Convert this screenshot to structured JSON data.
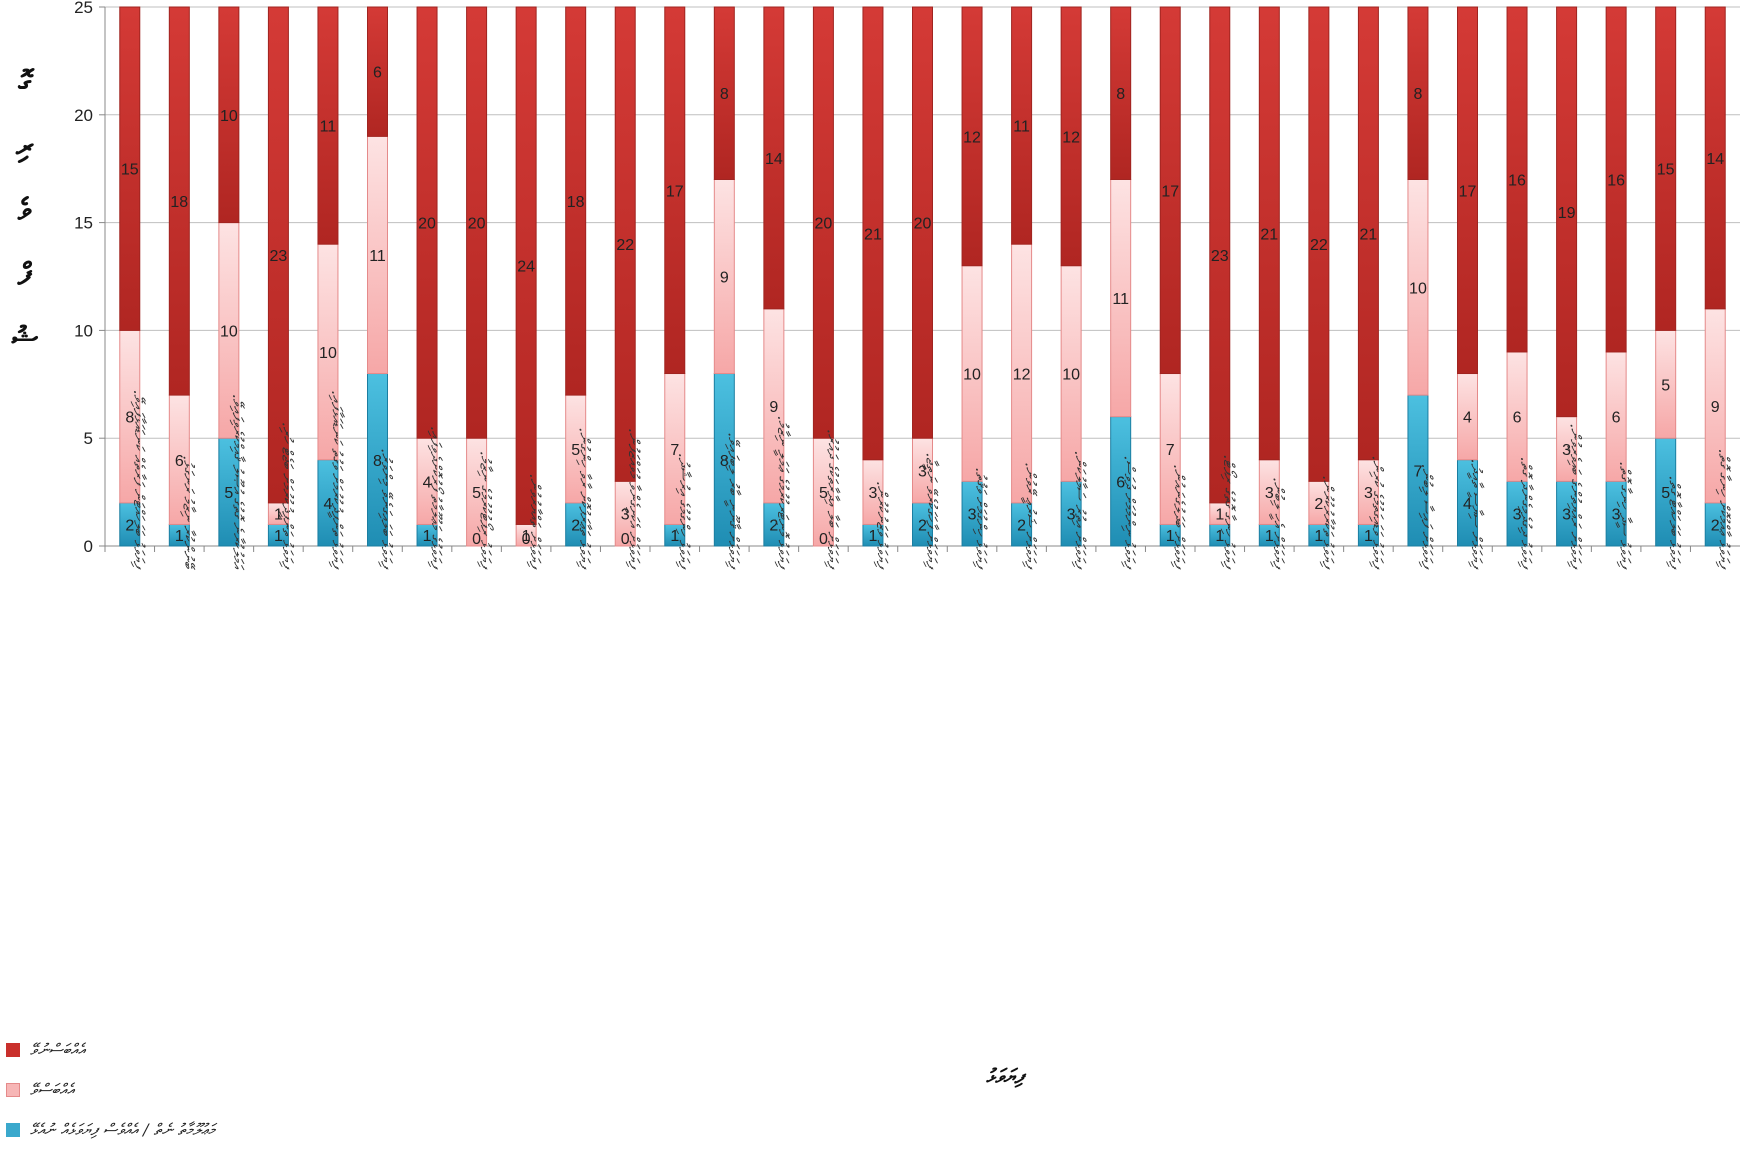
{
  "chart_data": {
    "type": "bar",
    "stacked": true,
    "ylabel": "ގޮ ރި ވެ ފް ޝު",
    "xlabel": "ފިޔަވަޅު",
    "ylim": [
      0,
      25
    ],
    "yticks": [
      0,
      5,
      10,
      15,
      20,
      25
    ],
    "grid": true,
    "legend_position": "bottom-left",
    "categories": [
      "ފިޔަވަޅު ބަލަހައްޓަން ފަރާތެއް ކަނޑައަޅާފައިވޭ.",
      "ބޭނުންކުރާ ނިޒާމު ރަނގަޅު.",
      "އަމަލުކުރާނެ ގޮތުގެ އުޞޫލު ޤާއިމްކުރެވިފައިވޭ.",
      "ފިޔަވަޅު ތަންފީޛުކުރުމަށް ބަޖެޓް ހުރި.",
      "ފިޔަވަޅު ތަންފީޛުކުރުމަށް ވަގުތު ކަނޑައަޅާފައި.",
      "ފިޔަވަޅު ބަލައިގަނެވޭ މިންވަރު.",
      "ފިޔަވަޅުގެ މަޢުލޫމާތު ފޯރުކޮށްދެވިފައި.",
      "ފިޔަވަޅު ރިޕޯޓުކުރުމުގެ ނިޒާމު.",
      "ފިޔަވަޅަށް ތައްޔާރުވުން.",
      "ފިޔަވަޅު ތަޢާރަފުކޮށް ރާވާ ހިންގުން.",
      "ފިޔަވަޅަށް އެކަށީގެންވާ މުވައްޒަފުން.",
      "ފިޔަވަޅު ހިންގުމުގެ އިރުޝާދު.",
      "ފިޔަވަޅަށް ޤާނޫނީ ބާރު ލިބިފައިވޭ.",
      "ފިޔަވަޅު މޮނިޓަރކުރުމުގެ ޢަމަލީ ނިޒާމު.",
      "ފިޔަވަޅަށް ބަލާ އިދާރާތަކުގެ ދައުރު.",
      "ފިޔަވަޅު ވަޒަނުކުރުން.",
      "ފިޔަވަޅަށް ފާހަގަކުރެވޭ ނަތީޖާ.",
      "ފިޔަވަޅު ހިންގުމަށް ވަޤުތު.",
      "ފިޔަވަޅަށް ޝަރުޢީ ރޭވުން.",
      "ފިޔަވަޅަށް އިތުރު ސަމާލުކަން.",
      "ފިޔަވަޅު ނިންމުމަށް ދުވަސް.",
      "ފިޔަވަޅަށް ބަދަލުގެނައުން.",
      "ފިޔަވަޅު ހިނގާ ގޮތުގެ ރިޕޯޓް.",
      "ފިޔަވަޅަށް އެހީ ލިބުން.",
      "ފިޔަވަޅު ތަކުރާރުކުރުން.",
      "ފިޔަވަޅު ވަޑައިގަތުމުގެ ކުރިން.",
      "ފިޔަވަޅަށް ފައިސާ ލިބުން.",
      "ފިޔަވަޅަށް ސިޔާސީ ތާއީދު.",
      "ފިޔަވަޅު ދިގުދެމިގެންދާ ގޮތް.",
      "ފިޔަވަޅަށް ރައްޔިތުންގެ ބައިވެރިވުން.",
      "ފިޔަވަޅު ސީދާ ހިނގާ ގޮތް.",
      "ފިޔަވަޅު ބަލަހައްޓާ ގޮތް.",
      "ފިޔަވަޅު ޢާއްމުކޮށް ހިނގާ ގޮތް."
    ],
    "series": [
      {
        "name": "މަޢުލޫމާތު ނެތް / އެއްވެސް ފިޔަވަޅެއް ނުއެޅޭ",
        "color": "#3aa8cc",
        "values": [
          2,
          1,
          5,
          1,
          4,
          8,
          1,
          0,
          0,
          2,
          0,
          1,
          8,
          2,
          0,
          1,
          2,
          3,
          2,
          3,
          6,
          1,
          1,
          1,
          1,
          1,
          7,
          4,
          3,
          3,
          3,
          5,
          2
        ]
      },
      {
        "name": "އެއްބަސްވޭ",
        "color": "#f7b6b6",
        "values": [
          8,
          6,
          10,
          1,
          10,
          11,
          4,
          5,
          1,
          5,
          3,
          7,
          9,
          9,
          5,
          3,
          3,
          10,
          12,
          10,
          11,
          7,
          1,
          3,
          2,
          3,
          10,
          4,
          6,
          3,
          6,
          5,
          9
        ]
      },
      {
        "name": "އެއްބަސްނުވޭ",
        "color": "#c9302c",
        "values": [
          15,
          18,
          10,
          23,
          11,
          6,
          20,
          20,
          24,
          18,
          22,
          17,
          8,
          14,
          20,
          21,
          20,
          12,
          11,
          12,
          8,
          17,
          23,
          21,
          22,
          21,
          8,
          17,
          16,
          19,
          16,
          15,
          14
        ]
      }
    ]
  },
  "legend": {
    "items": [
      {
        "label": "އެއްބަސްނުވޭ",
        "color": "#c9302c"
      },
      {
        "label": "އެއްބަސްވޭ",
        "color": "#f7b6b6"
      },
      {
        "label": "މަޢުލޫމާތު ނެތް / އެއްވެސް ފިޔަވަޅެއް ނުއެޅޭ",
        "color": "#3aa8cc"
      }
    ]
  }
}
